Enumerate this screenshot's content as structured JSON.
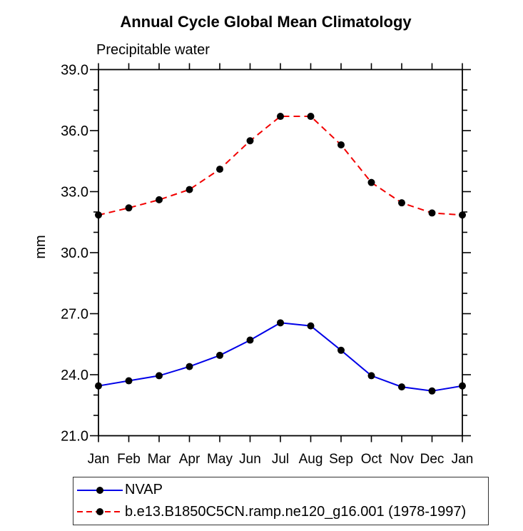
{
  "chart_data": {
    "type": "line",
    "title": "Annual Cycle Global Mean Climatology",
    "subtitle": "Precipitable water",
    "xlabel": "",
    "ylabel": "mm",
    "ylim": [
      21.0,
      39.0
    ],
    "ytick_major_step": 3.0,
    "ytick_minor_step": 1.0,
    "ytick_labels": [
      "21.0",
      "24.0",
      "27.0",
      "30.0",
      "33.0",
      "36.0",
      "39.0"
    ],
    "x_ticklabels": [
      "Jan",
      "Feb",
      "Mar",
      "Apr",
      "May",
      "Jun",
      "Jul",
      "Aug",
      "Sep",
      "Oct",
      "Nov",
      "Dec",
      "Jan"
    ],
    "grid": false,
    "legend_position": "bottom-left",
    "axis_color": "#000000",
    "marker_color": "#000000",
    "series": [
      {
        "name": "NVAP",
        "color": "#0000e8",
        "style": "solid",
        "marker": "circle",
        "values": [
          23.45,
          23.7,
          23.95,
          24.4,
          24.95,
          25.7,
          26.55,
          26.4,
          25.2,
          23.95,
          23.4,
          23.2,
          23.45
        ]
      },
      {
        "name": "b.e13.B1850C5CN.ramp.ne120_g16.001 (1978-1997)",
        "color": "#f20000",
        "style": "dashed",
        "marker": "circle",
        "values": [
          31.85,
          32.2,
          32.6,
          33.1,
          34.1,
          35.5,
          36.7,
          36.7,
          35.3,
          33.45,
          32.45,
          31.95,
          31.85
        ]
      }
    ]
  }
}
